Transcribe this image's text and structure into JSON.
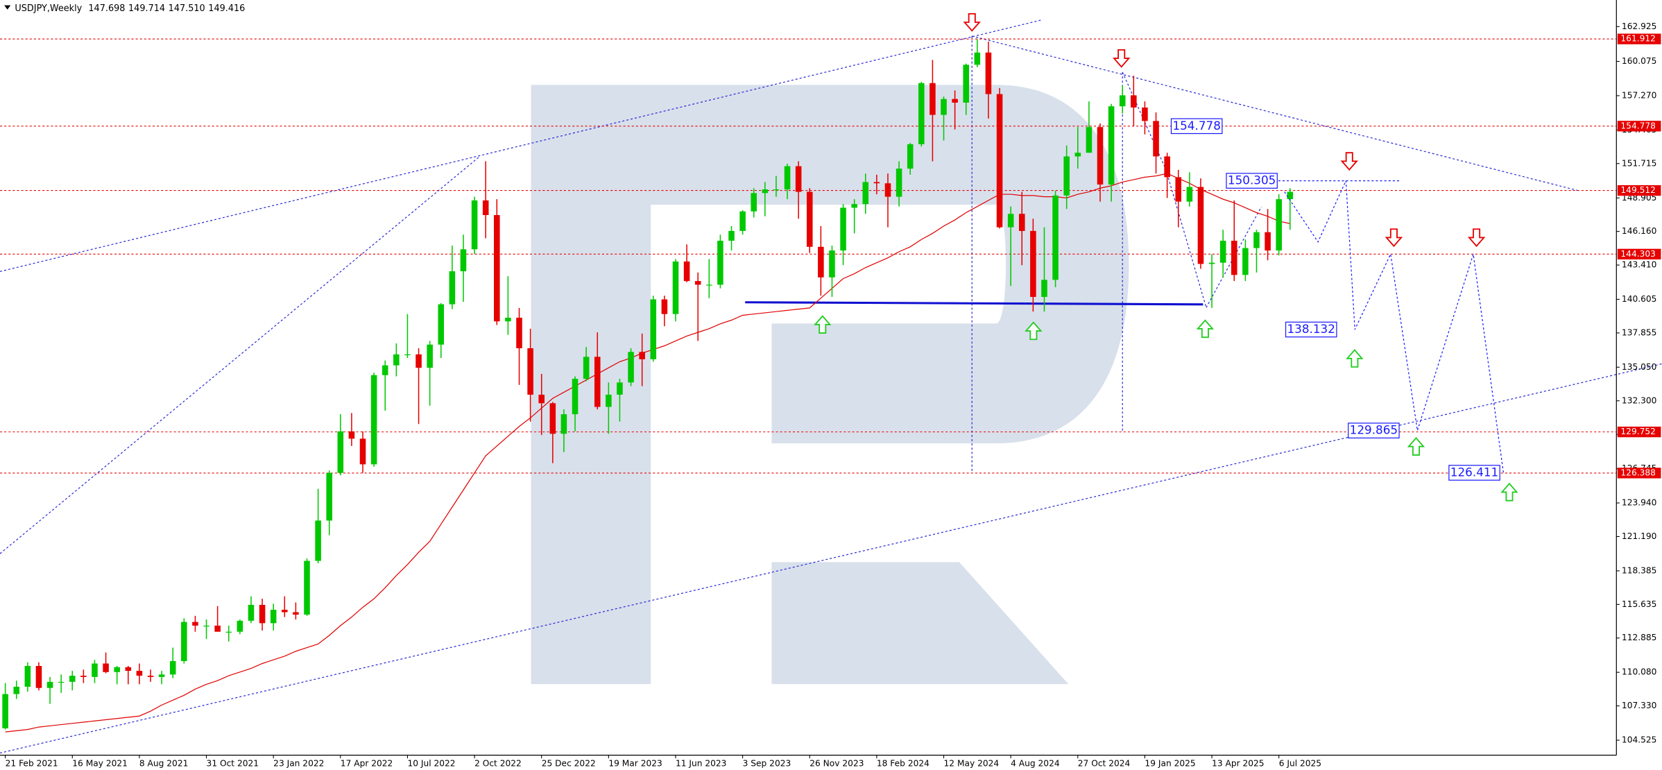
{
  "chart_data": {
    "type": "candlestick",
    "title": "USDJPY,Weekly",
    "header_values": [
      147.698,
      149.714,
      {
        "value": 147.51,
        "label": "147.510"
      },
      149.416
    ],
    "up_color": "#00c800",
    "down_color": "#e60000",
    "ma_color": "#e00000",
    "level_color": "#e60000",
    "forecast_color": "#1a1aff",
    "ylim": [
      103.3,
      165.1
    ],
    "yticks": [
      162.925,
      160.075,
      {
        "value": 157.27,
        "label": "157.270"
      },
      154.465,
      151.715,
      148.905,
      {
        "value": 146.16,
        "label": "146.160"
      },
      {
        "value": 143.41,
        "label": "143.410"
      },
      140.605,
      137.855,
      {
        "value": 135.05,
        "label": "135.050"
      },
      {
        "value": 132.3,
        "label": "132.300"
      },
      129.545,
      126.745,
      {
        "value": 123.94,
        "label": "123.940"
      },
      {
        "value": 121.19,
        "label": "121.190"
      },
      118.385,
      115.635,
      112.885,
      {
        "value": 110.08,
        "label": "110.080"
      },
      {
        "value": 107.33,
        "label": "107.330"
      },
      104.525
    ],
    "categories": [
      "21 Feb 2021",
      null,
      null,
      null,
      null,
      null,
      "16 May 2021",
      null,
      null,
      null,
      null,
      null,
      "8 Aug 2021",
      null,
      null,
      null,
      null,
      null,
      "31 Oct 2021",
      null,
      null,
      null,
      null,
      null,
      "23 Jan 2022",
      null,
      null,
      null,
      null,
      null,
      "17 Apr 2022",
      null,
      null,
      null,
      null,
      null,
      "10 Jul 2022",
      null,
      null,
      null,
      null,
      null,
      "2 Oct 2022",
      null,
      null,
      null,
      null,
      null,
      "25 Dec 2022",
      null,
      null,
      null,
      null,
      null,
      "19 Mar 2023",
      null,
      null,
      null,
      null,
      null,
      "11 Jun 2023",
      null,
      null,
      null,
      null,
      null,
      "3 Sep 2023",
      null,
      null,
      null,
      null,
      null,
      "26 Nov 2023",
      null,
      null,
      null,
      null,
      null,
      "18 Feb 2024",
      null,
      null,
      null,
      null,
      null,
      "12 May 2024",
      null,
      null,
      null,
      null,
      null,
      "4 Aug 2024",
      null,
      null,
      null,
      null,
      null,
      "27 Oct 2024",
      null,
      null,
      null,
      null,
      null,
      "19 Jan 2025",
      null,
      null,
      null,
      null,
      null,
      "13 Apr 2025",
      null,
      null,
      null,
      null,
      null,
      "6 Jul 2025",
      null
    ],
    "ohlc": [
      [
        105.5,
        109.2,
        105.4,
        108.3
      ],
      [
        108.3,
        109.4,
        107.9,
        108.9
      ],
      [
        108.9,
        110.9,
        108.5,
        110.6
      ],
      [
        110.6,
        110.9,
        108.6,
        108.8
      ],
      [
        108.8,
        109.7,
        107.5,
        109.3
      ],
      [
        109.3,
        109.9,
        108.4,
        109.3
      ],
      [
        109.3,
        110.2,
        108.6,
        109.8
      ],
      [
        109.8,
        110.3,
        109.2,
        109.7
      ],
      [
        109.7,
        111.1,
        109.2,
        110.8
      ],
      [
        110.8,
        111.7,
        110.0,
        110.1
      ],
      [
        110.1,
        110.6,
        109.1,
        110.5
      ],
      [
        110.5,
        110.6,
        109.1,
        110.2
      ],
      [
        110.2,
        110.8,
        109.1,
        109.8
      ],
      [
        109.8,
        110.3,
        109.3,
        109.7
      ],
      [
        109.7,
        110.2,
        109.1,
        109.9
      ],
      [
        109.9,
        112.1,
        109.6,
        111.0
      ],
      [
        111.0,
        114.5,
        110.8,
        114.2
      ],
      [
        114.2,
        114.7,
        113.4,
        113.9
      ],
      [
        113.9,
        114.4,
        112.8,
        113.9
      ],
      [
        113.9,
        115.5,
        113.5,
        113.4
      ],
      [
        113.4,
        113.9,
        112.6,
        113.4
      ],
      [
        113.4,
        114.4,
        113.2,
        114.3
      ],
      [
        114.3,
        116.3,
        114.1,
        115.6
      ],
      [
        115.6,
        116.1,
        113.5,
        114.1
      ],
      [
        114.1,
        115.7,
        113.5,
        115.2
      ],
      [
        115.2,
        116.3,
        114.6,
        115.0
      ],
      [
        115.0,
        115.8,
        114.4,
        114.8
      ],
      [
        114.8,
        119.4,
        114.7,
        119.2
      ],
      [
        119.2,
        125.1,
        119.0,
        122.5
      ],
      [
        122.5,
        126.6,
        121.3,
        126.4
      ],
      [
        126.4,
        131.2,
        126.2,
        129.8
      ],
      [
        129.8,
        131.3,
        128.6,
        129.2
      ],
      [
        129.2,
        129.8,
        126.4,
        127.1
      ],
      [
        127.1,
        134.6,
        126.9,
        134.4
      ],
      [
        134.4,
        135.6,
        131.5,
        135.2
      ],
      [
        135.2,
        137.0,
        134.3,
        136.1
      ],
      [
        136.1,
        139.4,
        135.8,
        136.1
      ],
      [
        136.1,
        136.6,
        130.4,
        135.0
      ],
      [
        135.0,
        137.2,
        131.9,
        136.9
      ],
      [
        136.9,
        140.3,
        135.8,
        140.2
      ],
      [
        140.2,
        145.0,
        139.8,
        142.9
      ],
      [
        142.9,
        145.9,
        140.4,
        144.7
      ],
      [
        144.7,
        149.0,
        144.3,
        148.7
      ],
      [
        148.7,
        151.9,
        145.6,
        147.5
      ],
      [
        147.5,
        148.8,
        138.5,
        138.8
      ],
      [
        138.8,
        142.5,
        137.7,
        139.1
      ],
      [
        139.1,
        139.9,
        133.6,
        136.6
      ],
      [
        136.6,
        138.2,
        130.6,
        132.8
      ],
      [
        132.8,
        134.5,
        129.5,
        132.1
      ],
      [
        132.1,
        132.2,
        127.2,
        129.6
      ],
      [
        129.6,
        131.6,
        128.1,
        131.2
      ],
      [
        131.2,
        134.3,
        129.8,
        134.1
      ],
      [
        134.1,
        136.7,
        133.9,
        135.9
      ],
      [
        135.9,
        137.9,
        131.6,
        131.8
      ],
      [
        131.8,
        133.8,
        129.6,
        132.8
      ],
      [
        132.8,
        134.1,
        130.6,
        133.8
      ],
      [
        133.8,
        136.6,
        133.5,
        136.3
      ],
      [
        136.3,
        137.8,
        133.5,
        135.7
      ],
      [
        135.7,
        140.9,
        135.5,
        140.6
      ],
      [
        140.6,
        140.9,
        138.4,
        139.4
      ],
      [
        139.4,
        143.9,
        138.8,
        143.7
      ],
      [
        143.7,
        145.1,
        142.0,
        142.1
      ],
      [
        142.1,
        142.8,
        137.2,
        141.8
      ],
      [
        141.8,
        143.9,
        140.7,
        141.8
      ],
      [
        141.8,
        145.9,
        141.5,
        145.4
      ],
      [
        145.4,
        146.6,
        144.6,
        146.2
      ],
      [
        146.2,
        147.9,
        145.9,
        147.8
      ],
      [
        147.8,
        149.7,
        147.3,
        149.3
      ],
      [
        149.3,
        150.2,
        147.4,
        149.6
      ],
      [
        149.6,
        150.7,
        149.0,
        149.6
      ],
      [
        149.6,
        151.7,
        148.8,
        151.5
      ],
      [
        151.5,
        151.9,
        147.2,
        149.4
      ],
      [
        149.4,
        149.7,
        144.4,
        144.9
      ],
      [
        144.9,
        146.6,
        140.9,
        142.4
      ],
      [
        142.4,
        145.0,
        140.8,
        144.6
      ],
      [
        144.6,
        148.4,
        143.4,
        148.1
      ],
      [
        148.1,
        148.8,
        146.0,
        148.4
      ],
      [
        148.4,
        150.9,
        147.6,
        150.2
      ],
      [
        150.2,
        150.8,
        149.2,
        150.1
      ],
      [
        150.1,
        150.9,
        146.5,
        149.0
      ],
      [
        149.0,
        151.9,
        148.2,
        151.3
      ],
      [
        151.3,
        153.4,
        150.8,
        153.3
      ],
      [
        153.3,
        158.4,
        153.1,
        158.3
      ],
      [
        158.3,
        160.2,
        151.9,
        155.7
      ],
      [
        155.7,
        157.2,
        153.6,
        157.0
      ],
      [
        157.0,
        157.7,
        154.5,
        156.7
      ],
      [
        156.7,
        159.9,
        155.7,
        159.8
      ],
      [
        159.8,
        161.9,
        159.6,
        160.8
      ],
      [
        160.8,
        161.7,
        155.4,
        157.4
      ],
      [
        157.4,
        157.9,
        146.4,
        146.5
      ],
      [
        146.5,
        148.2,
        141.7,
        147.6
      ],
      [
        147.6,
        149.4,
        143.4,
        146.2
      ],
      [
        146.2,
        147.2,
        139.6,
        140.8
      ],
      [
        140.8,
        146.5,
        139.6,
        142.2
      ],
      [
        142.2,
        149.5,
        141.6,
        149.1
      ],
      [
        149.1,
        153.2,
        148.0,
        152.3
      ],
      [
        152.3,
        154.7,
        151.3,
        152.6
      ],
      [
        152.6,
        156.8,
        152.6,
        154.7
      ],
      [
        154.7,
        155.0,
        148.6,
        150.0
      ],
      [
        150.0,
        156.6,
        148.6,
        156.4
      ],
      [
        156.4,
        158.1,
        155.8,
        157.3
      ],
      [
        157.3,
        158.9,
        154.8,
        156.3
      ],
      [
        156.3,
        156.8,
        154.1,
        155.2
      ],
      [
        155.2,
        155.9,
        150.9,
        152.3
      ],
      [
        152.3,
        152.6,
        148.9,
        150.6
      ],
      [
        150.6,
        151.2,
        146.5,
        148.6
      ],
      [
        148.6,
        151.0,
        148.2,
        149.8
      ],
      [
        149.8,
        150.5,
        143.1,
        143.5
      ],
      [
        143.5,
        144.3,
        139.9,
        143.6
      ],
      [
        143.6,
        146.3,
        142.4,
        145.4
      ],
      [
        145.4,
        148.7,
        142.1,
        142.6
      ],
      [
        142.6,
        145.5,
        142.1,
        144.8
      ],
      [
        144.8,
        146.3,
        142.8,
        146.1
      ],
      [
        146.1,
        148.0,
        143.8,
        144.6
      ],
      [
        144.6,
        149.2,
        144.2,
        148.8
      ],
      [
        148.8,
        149.7,
        146.3,
        149.4
      ]
    ],
    "ma": [
      105.2,
      105.3,
      105.4,
      105.6,
      105.7,
      105.8,
      105.9,
      106.0,
      106.1,
      106.2,
      106.3,
      106.4,
      106.5,
      106.9,
      107.4,
      107.8,
      108.2,
      108.7,
      109.1,
      109.4,
      109.8,
      110.1,
      110.4,
      110.8,
      111.1,
      111.4,
      111.8,
      112.1,
      112.4,
      113.1,
      113.9,
      114.6,
      115.4,
      116.1,
      117.0,
      118.0,
      118.9,
      119.9,
      120.8,
      122.2,
      123.6,
      125.0,
      126.4,
      127.8,
      128.6,
      129.4,
      130.2,
      130.9,
      131.7,
      132.5,
      133.0,
      133.5,
      134.0,
      134.5,
      135.0,
      135.5,
      135.8,
      136.2,
      136.5,
      136.8,
      137.2,
      137.6,
      137.9,
      138.2,
      138.6,
      138.9,
      139.3,
      139.4,
      139.5,
      139.6,
      139.7,
      139.8,
      139.9,
      140.7,
      141.5,
      142.3,
      142.7,
      143.2,
      143.6,
      144.0,
      144.5,
      144.9,
      145.5,
      146.0,
      146.6,
      147.1,
      147.7,
      148.2,
      148.7,
      149.2,
      149.2,
      149.1,
      149.1,
      149.0,
      149.0,
      148.9,
      149.2,
      149.4,
      149.7,
      149.9,
      150.2,
      150.4,
      150.6,
      150.7,
      150.9,
      150.5,
      150.1,
      149.6,
      149.2,
      148.8,
      148.5,
      148.1,
      147.7,
      147.4,
      147.0,
      146.8
    ],
    "levels": [
      161.912,
      154.778,
      149.512,
      144.303,
      129.752,
      126.388
    ],
    "forecast": {
      "x": [
        114.5,
        117.5,
        120.0,
        120.8,
        124.0,
        126.4,
        131.4,
        134.1
      ],
      "values": [
        149.4,
        145.3,
        150.305,
        138.132,
        144.303,
        129.865,
        144.303,
        126.411
      ]
    },
    "price_labels": [
      154.778,
      150.305,
      138.132,
      129.865,
      126.411
    ]
  }
}
